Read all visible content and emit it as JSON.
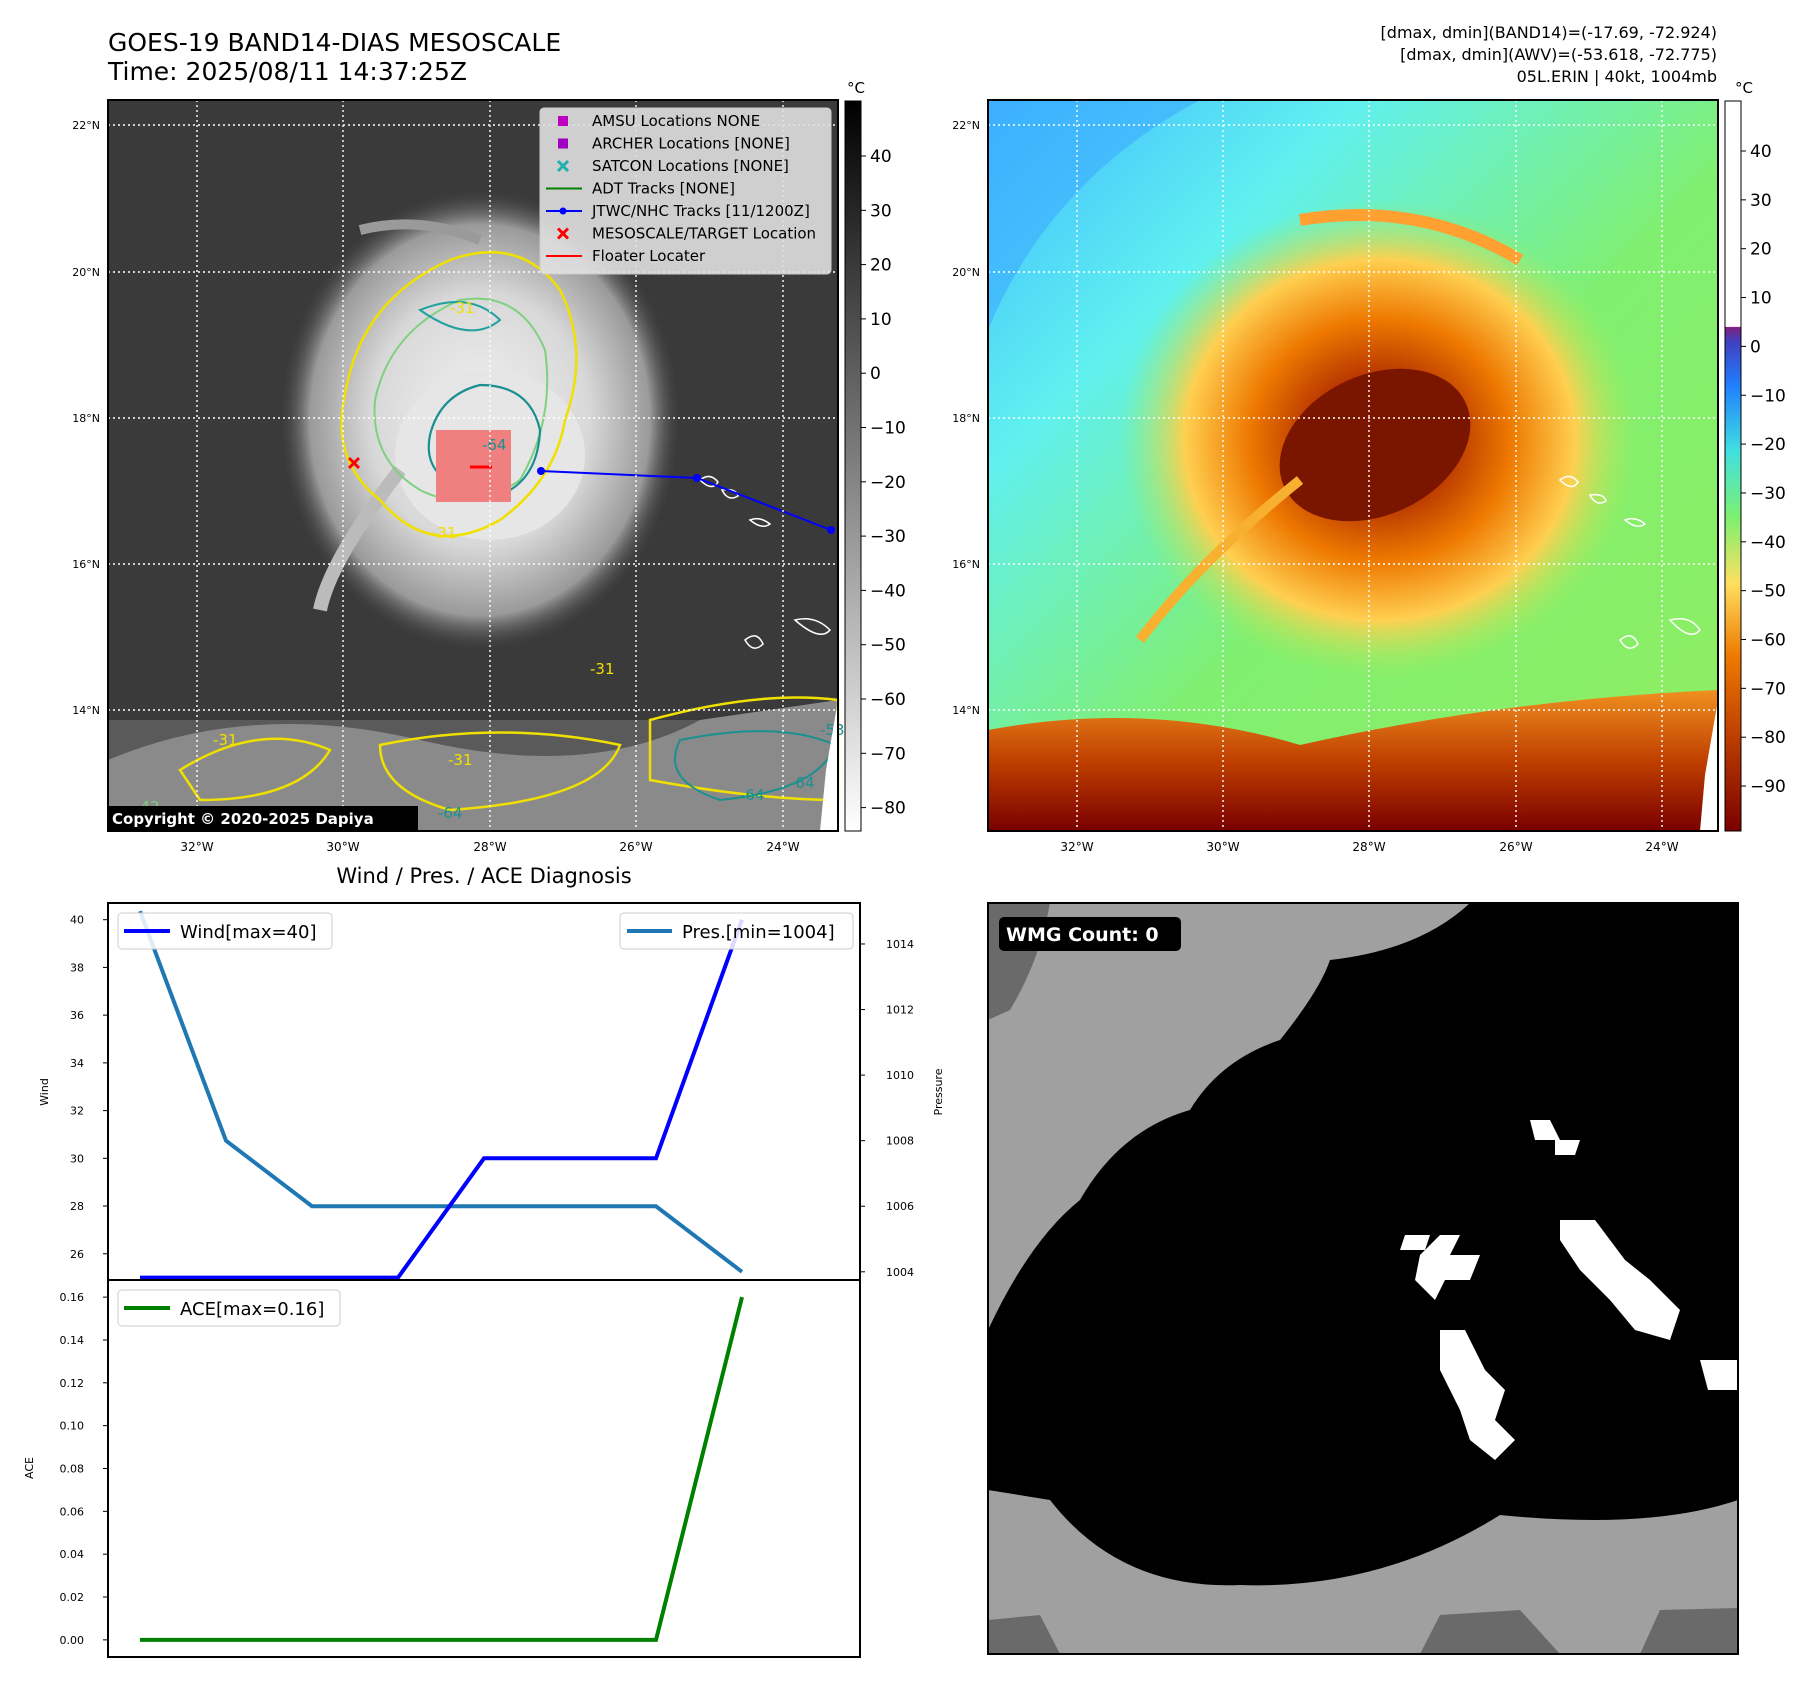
{
  "header": {
    "title_line1": "GOES-19 BAND14-DIAS MESOSCALE",
    "title_line2": "Time: 2025/08/11 14:37:25Z",
    "info_line1": "[dmax, dmin](BAND14)=(-17.69, -72.924)",
    "info_line2": "[dmax, dmin](AWV)=(-53.618, -72.775)",
    "info_line3": "05L.ERIN | 40kt, 1004mb"
  },
  "map": {
    "lat_labels": [
      "22°N",
      "20°N",
      "18°N",
      "16°N",
      "14°N"
    ],
    "lon_labels": [
      "32°W",
      "30°W",
      "28°W",
      "26°W",
      "24°W"
    ],
    "copyright": "Copyright © 2020-2025 Dapiya",
    "contour_labels": [
      "-31",
      "-64",
      "-53",
      "-42"
    ],
    "legend": [
      {
        "label": "AMSU Locations NONE",
        "marker": "square",
        "color": "#c000c0"
      },
      {
        "label": "ARCHER Locations [NONE]",
        "marker": "square",
        "color": "#a000c0"
      },
      {
        "label": "SATCON Locations [NONE]",
        "marker": "x",
        "color": "#20b0b0"
      },
      {
        "label": "ADT Tracks [NONE]",
        "marker": "line",
        "color": "#008000"
      },
      {
        "label": "JTWC/NHC Tracks [11/1200Z]",
        "marker": "line-dot",
        "color": "#0000ff"
      },
      {
        "label": "MESOSCALE/TARGET Location",
        "marker": "x",
        "color": "#ff0000"
      },
      {
        "label": "Floater Locater",
        "marker": "line",
        "color": "#ff0000"
      }
    ]
  },
  "colorbar_gray": {
    "unit": "°C",
    "ticks": [
      "40",
      "30",
      "20",
      "10",
      "0",
      "−10",
      "−20",
      "−30",
      "−40",
      "−50",
      "−60",
      "−70",
      "−80"
    ]
  },
  "colorbar_color": {
    "unit": "°C",
    "ticks": [
      "40",
      "30",
      "20",
      "10",
      "0",
      "−10",
      "−20",
      "−30",
      "−40",
      "−50",
      "−60",
      "−70",
      "−80",
      "−90"
    ]
  },
  "diagnosis": {
    "title": "Wind / Pres. / ACE Diagnosis",
    "wind_ylabel": "Wind",
    "pres_ylabel": "Pressure",
    "ace_ylabel": "ACE",
    "wind_legend": "Wind[max=40]",
    "pres_legend": "Pres.[min=1004]",
    "ace_legend": "ACE[max=0.16]",
    "wind_ticks": [
      "40",
      "38",
      "36",
      "34",
      "32",
      "30",
      "28",
      "26"
    ],
    "pres_ticks": [
      "1014",
      "1012",
      "1010",
      "1008",
      "1006",
      "1004"
    ],
    "ace_ticks": [
      "0.16",
      "0.14",
      "0.12",
      "0.10",
      "0.08",
      "0.06",
      "0.04",
      "0.02",
      "0.00"
    ]
  },
  "wmg": {
    "label": "WMG Count: 0"
  },
  "colors": {
    "wind": "#0000ff",
    "pressure": "#1f77b4",
    "ace": "#008000",
    "track": "#0000ff"
  },
  "chart_data": [
    {
      "type": "line",
      "title": "Wind / Pres. / ACE Diagnosis",
      "ylabel": "Wind",
      "ylim": [
        24.9,
        40.7
      ],
      "series": [
        {
          "name": "Wind[max=40]",
          "x": [
            0,
            1,
            2,
            3,
            4,
            5,
            6,
            7
          ],
          "values": [
            25,
            25,
            25,
            25,
            30,
            30,
            30,
            40
          ]
        }
      ]
    },
    {
      "type": "line",
      "ylabel": "Pressure",
      "ylim": [
        1003.75,
        1015.25
      ],
      "series": [
        {
          "name": "Pres.[min=1004]",
          "x": [
            0,
            1,
            2,
            3,
            4,
            5,
            6,
            7
          ],
          "values": [
            1015,
            1008,
            1006,
            1006,
            1006,
            1006,
            1006,
            1004
          ]
        }
      ]
    },
    {
      "type": "line",
      "ylabel": "ACE",
      "ylim": [
        -0.008,
        0.168
      ],
      "series": [
        {
          "name": "ACE[max=0.16]",
          "x": [
            0,
            1,
            2,
            3,
            4,
            5,
            6,
            7
          ],
          "values": [
            0,
            0,
            0,
            0,
            0,
            0,
            0,
            0.16
          ]
        }
      ]
    }
  ]
}
